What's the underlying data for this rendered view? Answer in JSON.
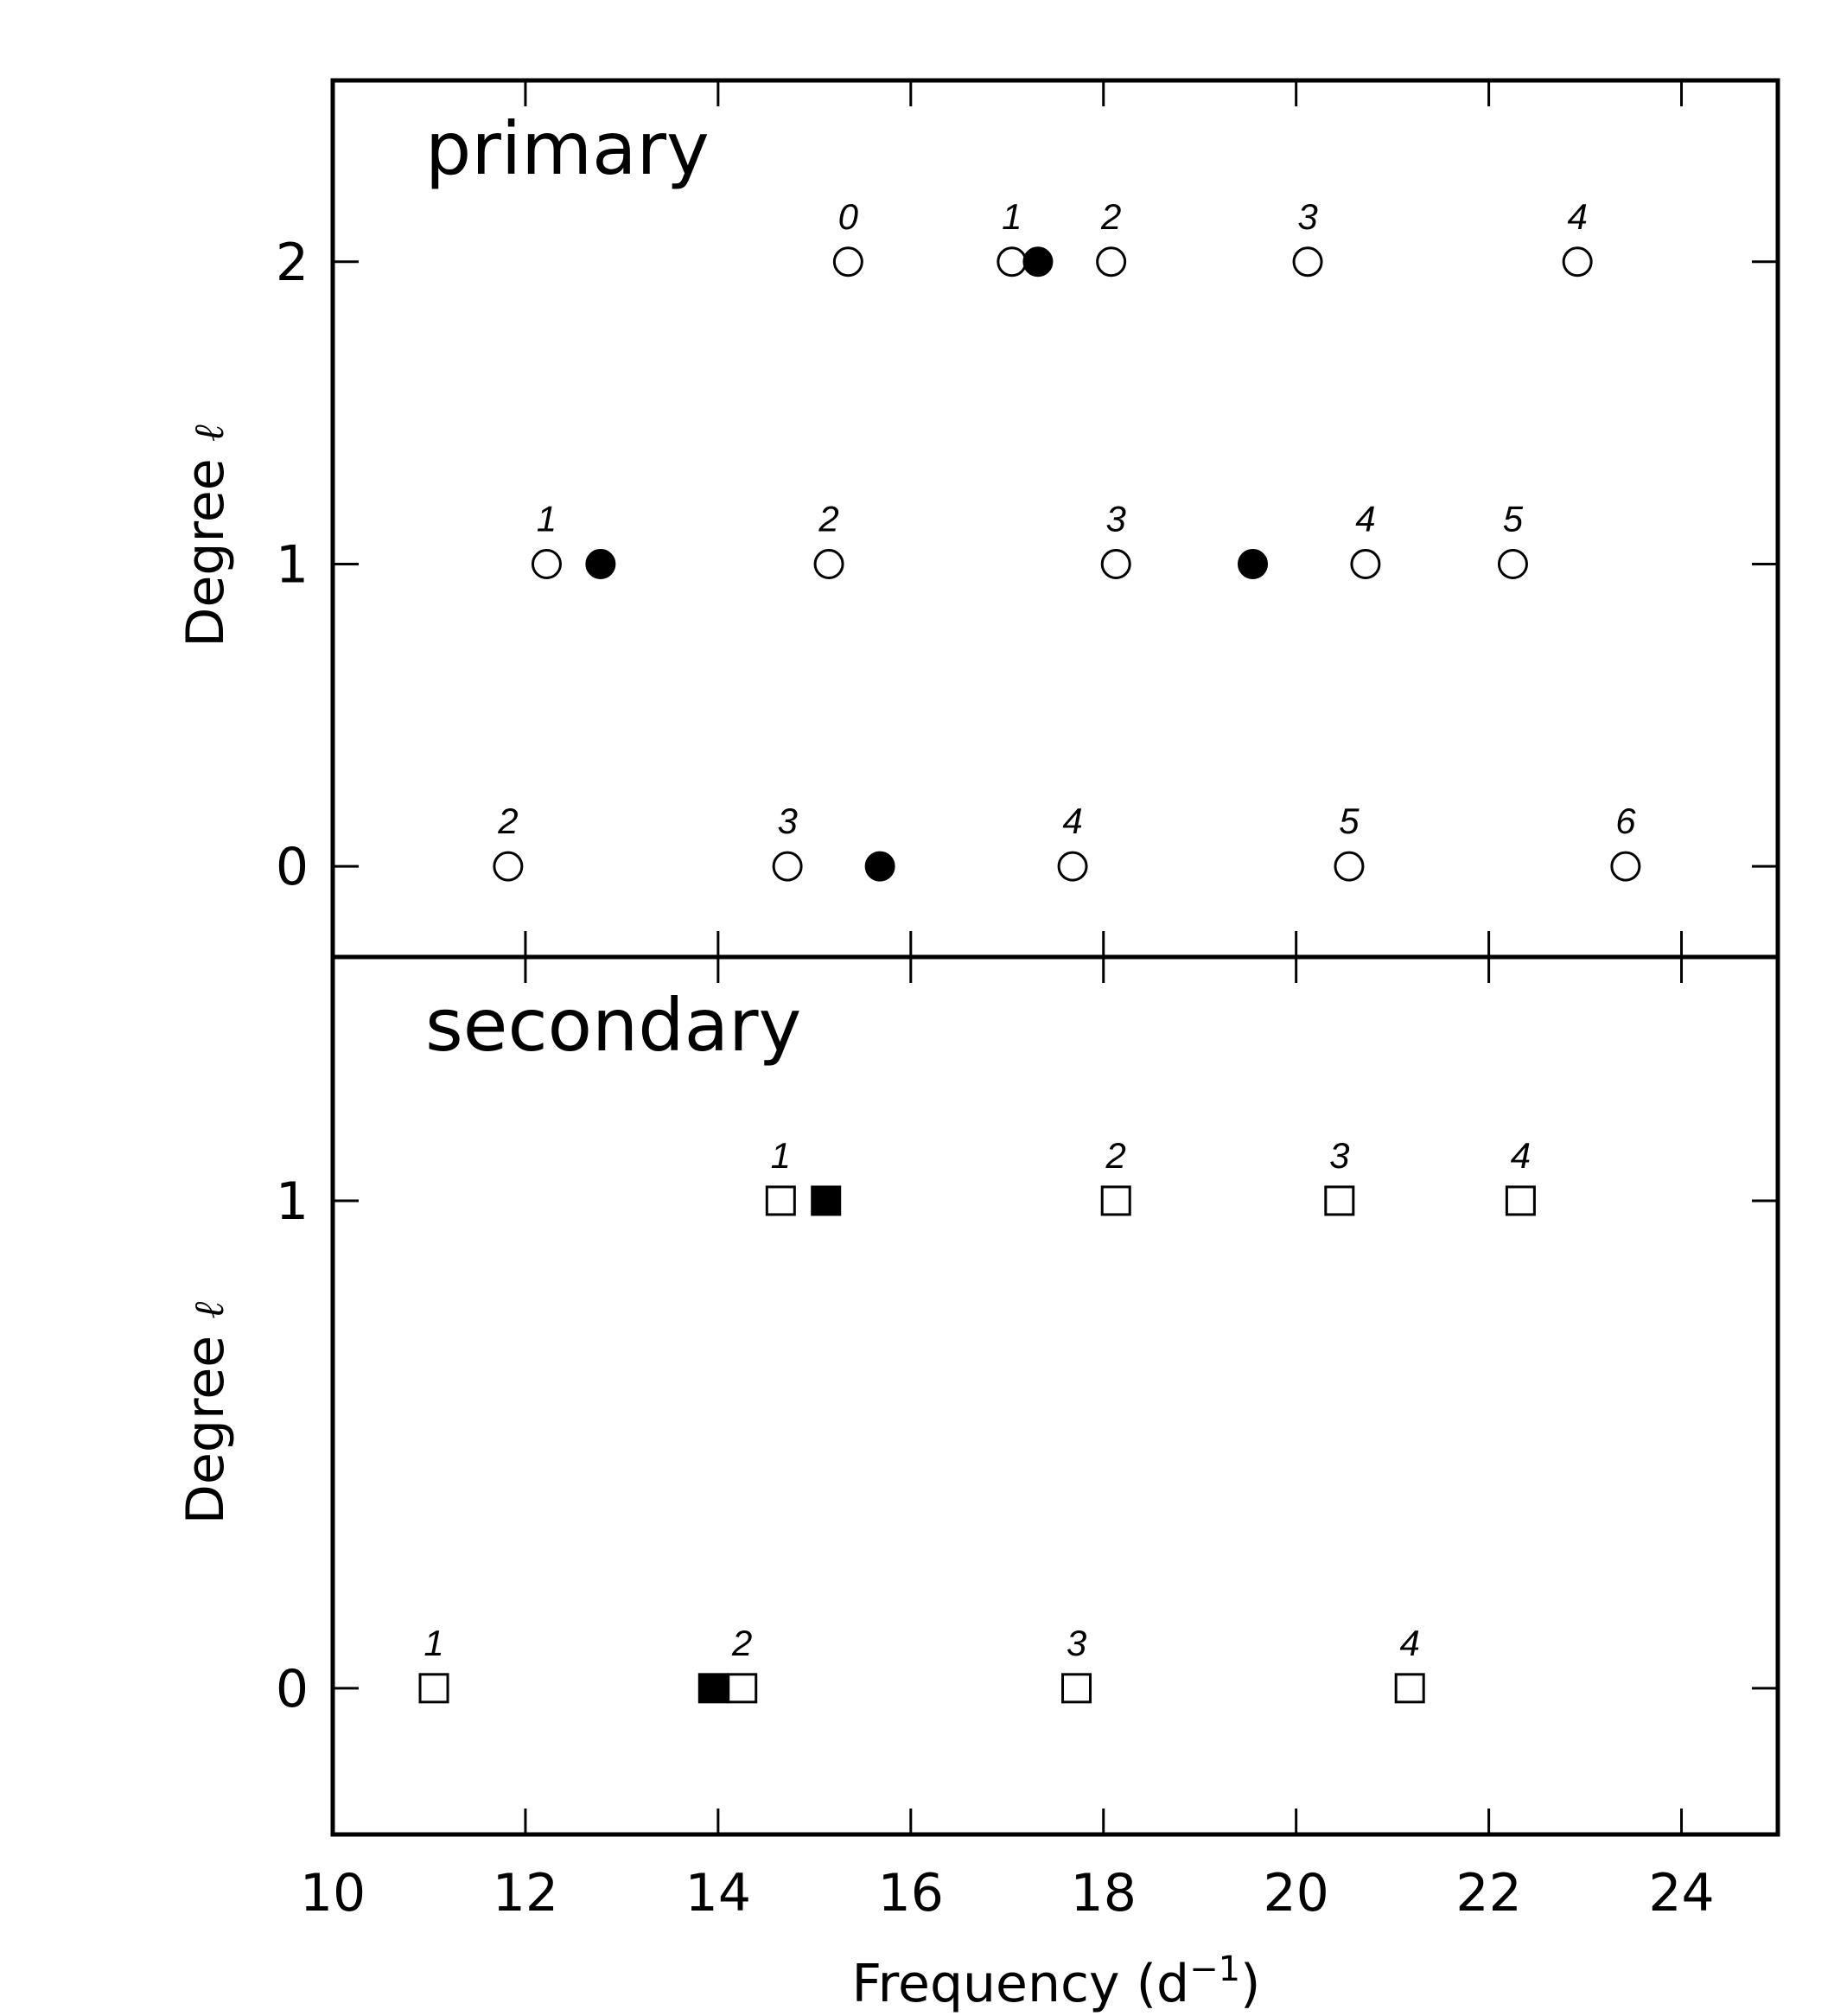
{
  "chart_data": [
    {
      "type": "scatter",
      "title": "primary",
      "xlabel": "Frequency (d⁻¹)",
      "ylabel": "Degree",
      "ylabel_symbol": "ℓ",
      "xlim": [
        10,
        25
      ],
      "ylim": [
        -0.3,
        2.6
      ],
      "xticks": [
        10,
        12,
        14,
        16,
        18,
        20,
        22,
        24
      ],
      "yticks": [
        0,
        1,
        2
      ],
      "marker": "circle",
      "series": [
        {
          "filled": false,
          "points": [
            {
              "x": 15.35,
              "y": 2,
              "label": "0"
            },
            {
              "x": 17.05,
              "y": 2,
              "label": "1"
            },
            {
              "x": 18.08,
              "y": 2,
              "label": "2"
            },
            {
              "x": 20.12,
              "y": 2,
              "label": "3"
            },
            {
              "x": 22.92,
              "y": 2,
              "label": "4"
            },
            {
              "x": 12.22,
              "y": 1,
              "label": "1"
            },
            {
              "x": 15.15,
              "y": 1,
              "label": "2"
            },
            {
              "x": 18.13,
              "y": 1,
              "label": "3"
            },
            {
              "x": 20.72,
              "y": 1,
              "label": "4"
            },
            {
              "x": 22.25,
              "y": 1,
              "label": "5"
            },
            {
              "x": 11.82,
              "y": 0,
              "label": "2"
            },
            {
              "x": 14.72,
              "y": 0,
              "label": "3"
            },
            {
              "x": 17.68,
              "y": 0,
              "label": "4"
            },
            {
              "x": 20.55,
              "y": 0,
              "label": "5"
            },
            {
              "x": 23.42,
              "y": 0,
              "label": "6"
            }
          ]
        },
        {
          "filled": true,
          "points": [
            {
              "x": 17.32,
              "y": 2
            },
            {
              "x": 12.78,
              "y": 1
            },
            {
              "x": 19.55,
              "y": 1
            },
            {
              "x": 15.68,
              "y": 0
            }
          ]
        }
      ]
    },
    {
      "type": "scatter",
      "title": "secondary",
      "xlabel": "Frequency (d⁻¹)",
      "ylabel": "Degree",
      "ylabel_symbol": "ℓ",
      "xlim": [
        10,
        25
      ],
      "ylim": [
        -0.3,
        1.5
      ],
      "xticks": [
        10,
        12,
        14,
        16,
        18,
        20,
        22,
        24
      ],
      "yticks": [
        0,
        1
      ],
      "marker": "square",
      "series": [
        {
          "filled": false,
          "points": [
            {
              "x": 14.65,
              "y": 1,
              "label": "1"
            },
            {
              "x": 18.13,
              "y": 1,
              "label": "2"
            },
            {
              "x": 20.45,
              "y": 1,
              "label": "3"
            },
            {
              "x": 22.33,
              "y": 1,
              "label": "4"
            },
            {
              "x": 11.05,
              "y": 0,
              "label": "1"
            },
            {
              "x": 14.25,
              "y": 0,
              "label": "2"
            },
            {
              "x": 17.72,
              "y": 0,
              "label": "3"
            },
            {
              "x": 21.18,
              "y": 0,
              "label": "4"
            }
          ]
        },
        {
          "filled": true,
          "points": [
            {
              "x": 15.12,
              "y": 1
            },
            {
              "x": 13.95,
              "y": 0
            }
          ]
        }
      ]
    }
  ]
}
